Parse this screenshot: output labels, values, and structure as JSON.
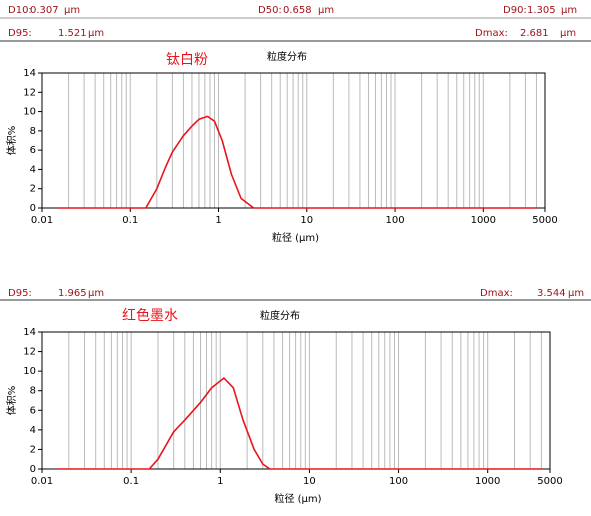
{
  "chart_data": [
    {
      "type": "line",
      "title": "粒度分布",
      "annotation": "钛白粉",
      "ylabel": "体积%",
      "xlabel": "粒径 (µm)",
      "stats": [
        [
          {
            "label": "D10:",
            "value": 0.307,
            "unit": "µm"
          },
          {
            "label": "D50:",
            "value": 0.658,
            "unit": "µm"
          },
          {
            "label": "D90:",
            "value": 1.305,
            "unit": "µm"
          }
        ],
        [
          {
            "label": "D95:",
            "value": 1.521,
            "unit": "µm"
          },
          {
            "label": "Dmax:",
            "value": 2.681,
            "unit": "µm"
          }
        ]
      ],
      "log_x": true,
      "grid_x": true,
      "xlim": [
        0.01,
        5000
      ],
      "xticks": [
        0.01,
        0.1,
        1,
        10,
        100,
        1000,
        5000
      ],
      "ylim": [
        0,
        14
      ],
      "yticks": [
        0,
        2,
        4,
        6,
        8,
        10,
        12,
        14
      ],
      "x": [
        0.015,
        0.15,
        0.2,
        0.25,
        0.3,
        0.4,
        0.5,
        0.6,
        0.75,
        0.9,
        1.1,
        1.4,
        1.8,
        2.5,
        4000
      ],
      "series": [
        {
          "color": "#e8161b",
          "values": [
            0,
            0,
            2,
            4.2,
            5.8,
            7.5,
            8.5,
            9.2,
            9.5,
            9,
            7,
            3.5,
            1,
            0,
            0
          ]
        }
      ]
    },
    {
      "type": "line",
      "title": "粒度分布",
      "annotation": "红色墨水",
      "ylabel": "体积%",
      "xlabel": "粒径 (µm)",
      "stats": [
        [
          {
            "label": "D95:",
            "value": 1.965,
            "unit": "µm"
          },
          {
            "label": "Dmax:",
            "value": 3.544,
            "unit": "µm"
          }
        ]
      ],
      "log_x": true,
      "grid_x": true,
      "xlim": [
        0.01,
        5000
      ],
      "xticks": [
        0.01,
        0.1,
        1,
        10,
        100,
        1000,
        5000
      ],
      "ylim": [
        0,
        14
      ],
      "yticks": [
        0,
        2,
        4,
        6,
        8,
        10,
        12,
        14
      ],
      "x": [
        0.015,
        0.16,
        0.2,
        0.3,
        0.4,
        0.6,
        0.8,
        1.1,
        1.4,
        1.8,
        2.4,
        3,
        3.6,
        4000
      ],
      "series": [
        {
          "color": "#e8161b",
          "values": [
            0,
            0,
            1,
            3.8,
            5,
            6.8,
            8.3,
            9.3,
            8.3,
            5,
            2,
            0.5,
            0,
            0
          ]
        }
      ]
    }
  ]
}
